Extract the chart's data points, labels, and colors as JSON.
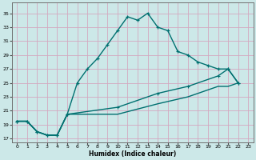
{
  "xlabel": "Humidex (Indice chaleur)",
  "bg_color": "#cce8e8",
  "grid_color": "#d4a8c0",
  "line_color": "#007070",
  "xlim": [
    -0.5,
    23.5
  ],
  "ylim": [
    16.5,
    36.5
  ],
  "xticks": [
    0,
    1,
    2,
    3,
    4,
    5,
    6,
    7,
    8,
    9,
    10,
    11,
    12,
    13,
    14,
    15,
    16,
    17,
    18,
    19,
    20,
    21,
    22,
    23
  ],
  "yticks": [
    17,
    19,
    21,
    23,
    25,
    27,
    29,
    31,
    33,
    35
  ],
  "curve1_x": [
    0,
    1,
    2,
    3,
    4,
    5,
    6,
    7,
    8,
    9,
    10,
    11,
    12,
    13,
    14,
    15,
    16,
    17,
    18,
    19,
    20,
    21,
    22
  ],
  "curve1_y": [
    19.5,
    19.5,
    18.0,
    17.5,
    17.5,
    20.5,
    25.0,
    27.0,
    28.5,
    30.5,
    32.5,
    34.5,
    34.0,
    35.0,
    33.0,
    32.5,
    29.5,
    29.0,
    28.0,
    27.5,
    27.0,
    27.0,
    25.0
  ],
  "curve2_x": [
    0,
    1,
    2,
    3,
    4,
    5,
    10,
    14,
    17,
    20,
    21,
    22
  ],
  "curve2_y": [
    19.5,
    19.5,
    18.0,
    17.5,
    17.5,
    20.5,
    21.5,
    23.5,
    24.5,
    26.0,
    27.0,
    25.0
  ],
  "curve3_x": [
    0,
    1,
    2,
    3,
    4,
    5,
    10,
    14,
    17,
    20,
    21,
    22
  ],
  "curve3_y": [
    19.5,
    19.5,
    18.0,
    17.5,
    17.5,
    20.5,
    20.5,
    22.0,
    23.0,
    24.5,
    24.5,
    25.0
  ]
}
